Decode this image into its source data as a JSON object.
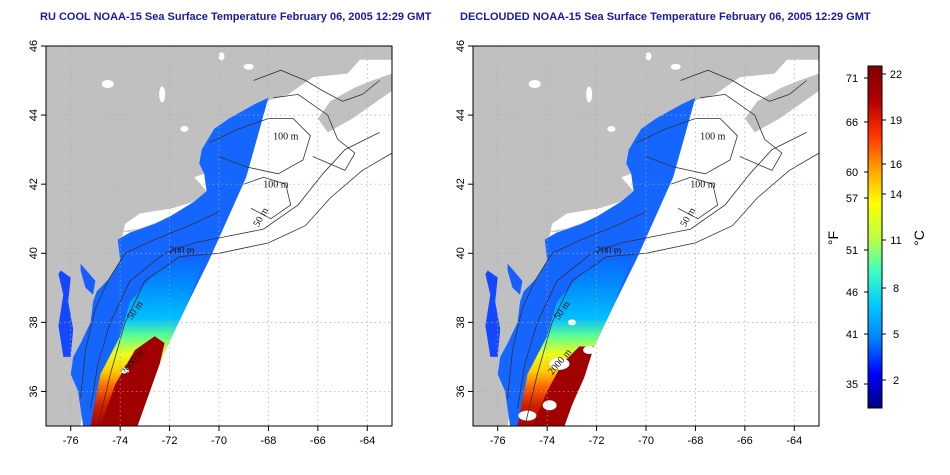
{
  "titles": {
    "left": "RU COOL NOAA-15 Sea Surface Temperature February 06, 2005 12:29 GMT",
    "right": "DECLOUDED NOAA-15 Sea Surface Temperature February 06, 2005 12:29 GMT"
  },
  "maps": {
    "lon_ticks": [
      "-76",
      "-74",
      "-72",
      "-70",
      "-68",
      "-66",
      "-64"
    ],
    "lat_ticks": [
      "36",
      "38",
      "40",
      "42",
      "44",
      "46"
    ],
    "lon_range": [
      -77,
      -63
    ],
    "lat_range": [
      35,
      46
    ],
    "grid": "dotted",
    "contour_labels": [
      "100 m",
      "100 m",
      "50 m",
      "200 m",
      "50 m",
      "2000 m"
    ]
  },
  "colorbar": {
    "fahrenheit_label": "°F",
    "celsius_label": "°C",
    "fahrenheit_ticks": [
      "71",
      "66",
      "60",
      "57",
      "51",
      "46",
      "41",
      "35"
    ],
    "celsius_ticks": [
      "22",
      "19",
      "16",
      "14",
      "11",
      "8",
      "5",
      "2"
    ],
    "colors": [
      "#000080",
      "#0000ff",
      "#0080ff",
      "#00c8ff",
      "#40ffbf",
      "#c0ff40",
      "#ffff00",
      "#ffa000",
      "#ff3000",
      "#b00000",
      "#800000"
    ]
  },
  "colors": {
    "land": "#c0c0c0",
    "title": "#1a1aa6",
    "grid": "#aaaaaa"
  }
}
